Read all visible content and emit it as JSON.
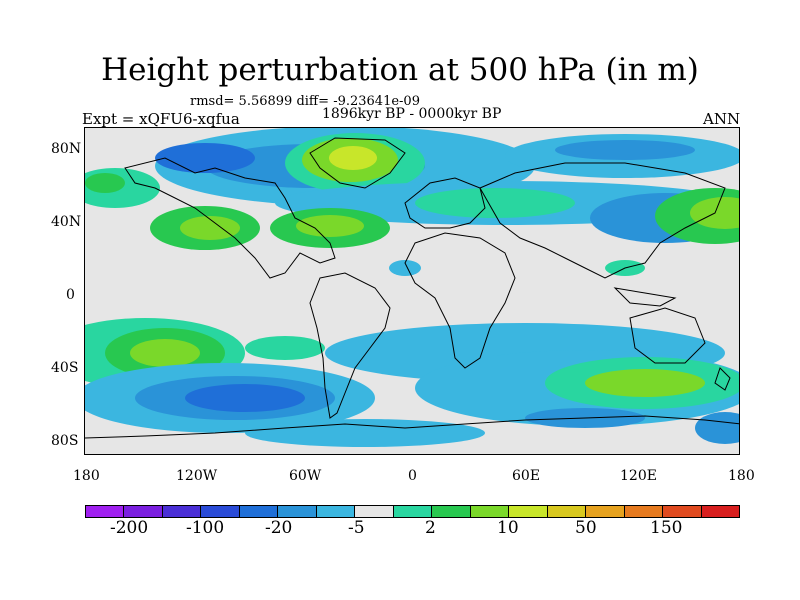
{
  "title": "Height perturbation at 500 hPa (in m)",
  "stats": "rmsd= 5.56899 diff= -9.23641e-09",
  "period": "1896kyr BP - 0000kyr BP",
  "experiment": "Expt = xQFU6-xqfua",
  "season": "ANN",
  "lat_labels": [
    "80N",
    "40N",
    "0",
    "40S",
    "80S"
  ],
  "lon_labels": [
    "180",
    "120W",
    "60W",
    "0",
    "60E",
    "120E",
    "180"
  ],
  "colorbar": {
    "colors": [
      "#a020f0",
      "#7b1fe0",
      "#4a2fd6",
      "#2a4bd7",
      "#1f6fd8",
      "#2a93d8",
      "#3bb6e0",
      "#e6e6e6",
      "#29d6a0",
      "#28c850",
      "#7ad82a",
      "#c8e62a",
      "#d8c81f",
      "#e6a21f",
      "#e67a1f",
      "#e04a1f",
      "#d81f1f"
    ],
    "labels": [
      "-200",
      "-100",
      "-20",
      "-5",
      "2",
      "10",
      "50",
      "150"
    ]
  },
  "field_colors": {
    "strong_neg": "#1f6fd8",
    "mid_neg": "#2a93d8",
    "weak_neg": "#3bb6e0",
    "weak_pos": "#29d6a0",
    "mid_pos": "#28c850",
    "pos": "#7ad82a",
    "strong_pos": "#c8e62a",
    "max_pos": "#d8c81f"
  }
}
